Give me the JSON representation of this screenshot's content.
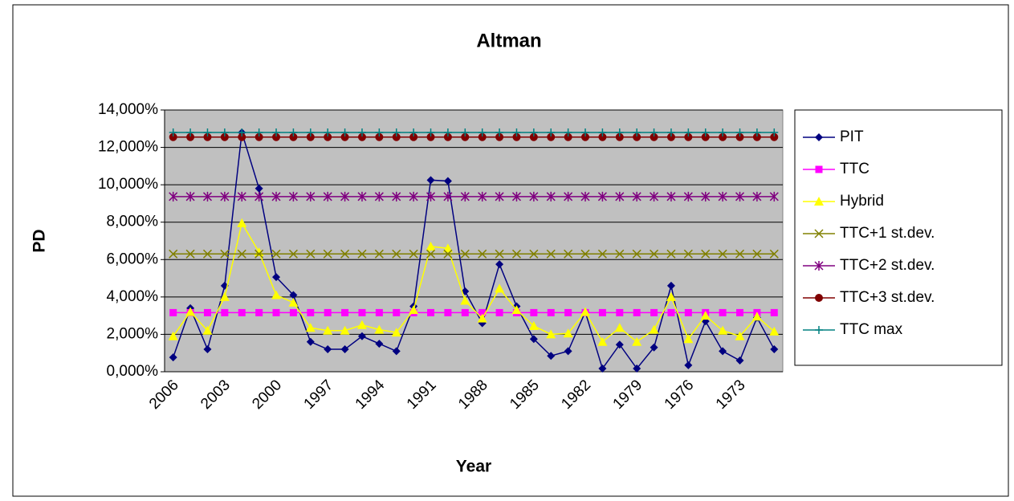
{
  "chart_data": {
    "type": "line",
    "title": "Altman",
    "x_label": "Year",
    "y_label": "PD",
    "categories": [
      "2006",
      null,
      null,
      "2003",
      null,
      null,
      "2000",
      null,
      null,
      "1997",
      null,
      null,
      "1994",
      null,
      null,
      "1991",
      null,
      null,
      "1988",
      null,
      null,
      "1985",
      null,
      null,
      "1982",
      null,
      null,
      "1979",
      null,
      null,
      "1976",
      null,
      null,
      "1973",
      null,
      null
    ],
    "ylim": [
      0,
      14
    ],
    "yticks": [
      {
        "value": 0,
        "label": "0,000%"
      },
      {
        "value": 2,
        "label": "2,000%"
      },
      {
        "value": 4,
        "label": "4,000%"
      },
      {
        "value": 6,
        "label": "6,000%"
      },
      {
        "value": 8,
        "label": "8,000%"
      },
      {
        "value": 10,
        "label": "10,000%"
      },
      {
        "value": 12,
        "label": "12,000%"
      },
      {
        "value": 14,
        "label": "14,000%"
      }
    ],
    "grid": true,
    "legend": "right",
    "series": [
      {
        "name": "PIT",
        "color": "#000080",
        "marker": "diamond",
        "values": [
          0.77,
          3.4,
          1.2,
          4.6,
          12.8,
          9.8,
          5.06,
          4.1,
          1.6,
          1.2,
          1.2,
          1.9,
          1.5,
          1.1,
          3.5,
          10.25,
          10.2,
          4.3,
          2.6,
          5.75,
          3.5,
          1.75,
          0.85,
          1.1,
          3.2,
          0.17,
          1.45,
          0.17,
          1.3,
          4.6,
          0.35,
          2.7,
          1.1,
          0.6,
          2.9,
          1.2
        ]
      },
      {
        "name": "TTC",
        "color": "#ff00ff",
        "marker": "square",
        "values": [
          3.16,
          3.16,
          3.16,
          3.16,
          3.16,
          3.16,
          3.16,
          3.16,
          3.16,
          3.16,
          3.16,
          3.16,
          3.16,
          3.16,
          3.16,
          3.16,
          3.16,
          3.16,
          3.16,
          3.16,
          3.16,
          3.16,
          3.16,
          3.16,
          3.16,
          3.16,
          3.16,
          3.16,
          3.16,
          3.16,
          3.16,
          3.16,
          3.16,
          3.16,
          3.16,
          3.16
        ]
      },
      {
        "name": "Hybrid",
        "color": "#ffff00",
        "marker": "triangle",
        "values": [
          1.9,
          3.2,
          2.2,
          4.0,
          7.95,
          6.4,
          4.1,
          3.7,
          2.35,
          2.2,
          2.2,
          2.5,
          2.25,
          2.1,
          3.3,
          6.7,
          6.6,
          3.8,
          2.85,
          4.45,
          3.3,
          2.45,
          2.0,
          2.05,
          3.2,
          1.6,
          2.35,
          1.6,
          2.25,
          4.0,
          1.75,
          3.0,
          2.2,
          1.9,
          2.95,
          2.15
        ]
      },
      {
        "name": "TTC+1 st.dev.",
        "color": "#808000",
        "marker": "x",
        "values": [
          6.3,
          6.3,
          6.3,
          6.3,
          6.3,
          6.3,
          6.3,
          6.3,
          6.3,
          6.3,
          6.3,
          6.3,
          6.3,
          6.3,
          6.3,
          6.3,
          6.3,
          6.3,
          6.3,
          6.3,
          6.3,
          6.3,
          6.3,
          6.3,
          6.3,
          6.3,
          6.3,
          6.3,
          6.3,
          6.3,
          6.3,
          6.3,
          6.3,
          6.3,
          6.3,
          6.3
        ]
      },
      {
        "name": "TTC+2 st.dev.",
        "color": "#800080",
        "marker": "star",
        "values": [
          9.37,
          9.37,
          9.37,
          9.37,
          9.37,
          9.37,
          9.37,
          9.37,
          9.37,
          9.37,
          9.37,
          9.37,
          9.37,
          9.37,
          9.37,
          9.37,
          9.37,
          9.37,
          9.37,
          9.37,
          9.37,
          9.37,
          9.37,
          9.37,
          9.37,
          9.37,
          9.37,
          9.37,
          9.37,
          9.37,
          9.37,
          9.37,
          9.37,
          9.37,
          9.37,
          9.37
        ]
      },
      {
        "name": "TTC+3 st.dev.",
        "color": "#800000",
        "marker": "circle",
        "values": [
          12.55,
          12.55,
          12.55,
          12.55,
          12.55,
          12.55,
          12.55,
          12.55,
          12.55,
          12.55,
          12.55,
          12.55,
          12.55,
          12.55,
          12.55,
          12.55,
          12.55,
          12.55,
          12.55,
          12.55,
          12.55,
          12.55,
          12.55,
          12.55,
          12.55,
          12.55,
          12.55,
          12.55,
          12.55,
          12.55,
          12.55,
          12.55,
          12.55,
          12.55,
          12.55,
          12.55
        ]
      },
      {
        "name": "TTC max",
        "color": "#008080",
        "marker": "plus",
        "values": [
          12.8,
          12.8,
          12.8,
          12.8,
          12.8,
          12.8,
          12.8,
          12.8,
          12.8,
          12.8,
          12.8,
          12.8,
          12.8,
          12.8,
          12.8,
          12.8,
          12.8,
          12.8,
          12.8,
          12.8,
          12.8,
          12.8,
          12.8,
          12.8,
          12.8,
          12.8,
          12.8,
          12.8,
          12.8,
          12.8,
          12.8,
          12.8,
          12.8,
          12.8,
          12.8,
          12.8
        ]
      }
    ]
  }
}
